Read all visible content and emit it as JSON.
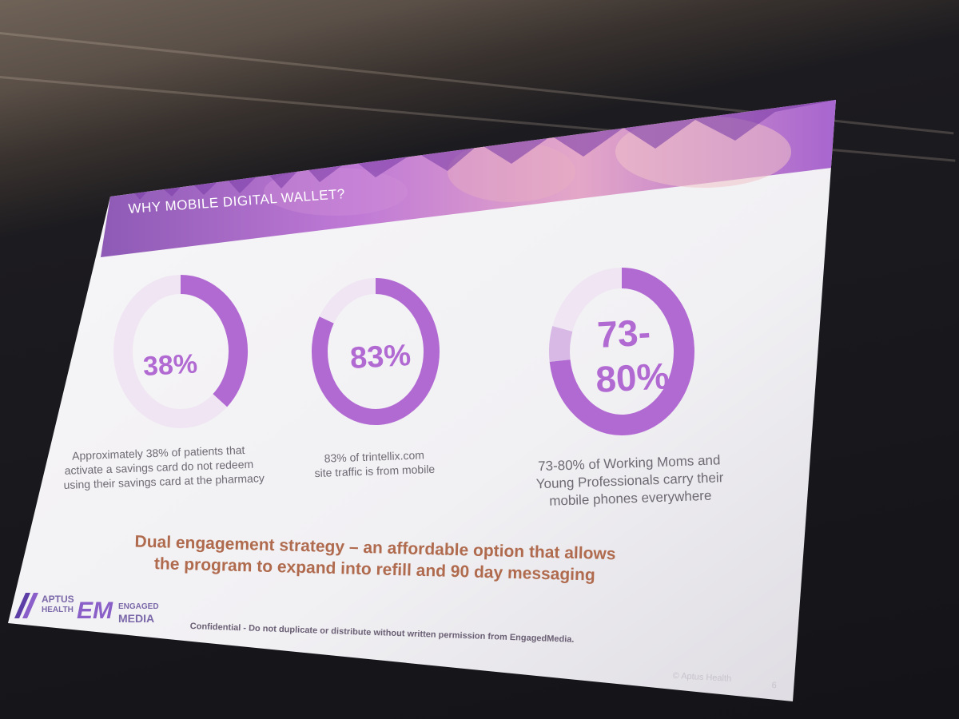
{
  "slide": {
    "title": "WHY MOBILE DIGITAL WALLET?",
    "stats": [
      {
        "value": "38%",
        "fill_fraction": 0.38,
        "caption": [
          "Approximately 38% of patients that",
          "activate a savings card do not redeem",
          "using their savings card at the pharmacy"
        ]
      },
      {
        "value": "83%",
        "fill_fraction": 0.83,
        "caption": [
          "83% of trintellix.com",
          "site traffic is from mobile"
        ]
      },
      {
        "value_line1": "73-",
        "value_line2": "80%",
        "fill_fraction_low": 0.73,
        "fill_fraction_high": 0.8,
        "caption": [
          "73-80% of Working Moms and",
          "Young Professionals carry their",
          "mobile phones everywhere"
        ]
      }
    ],
    "strategy": [
      "Dual engagement strategy – an affordable option that allows",
      "the program to expand into refill and 90 day messaging"
    ],
    "confidential": "Confidential - Do not duplicate or distribute without written permission from EngagedMedia.",
    "copyright": "© Aptus Health",
    "page_number": "6",
    "logos": {
      "aptus_line1": "APTUS",
      "aptus_line2": "HEALTH",
      "em_mark": "EM",
      "em_line1": "ENGAGED",
      "em_line2": "MEDIA"
    },
    "colors": {
      "accent": "#b26ad3",
      "strategy_text": "#b06b4e",
      "ring_light": "#f0e6f3"
    }
  }
}
